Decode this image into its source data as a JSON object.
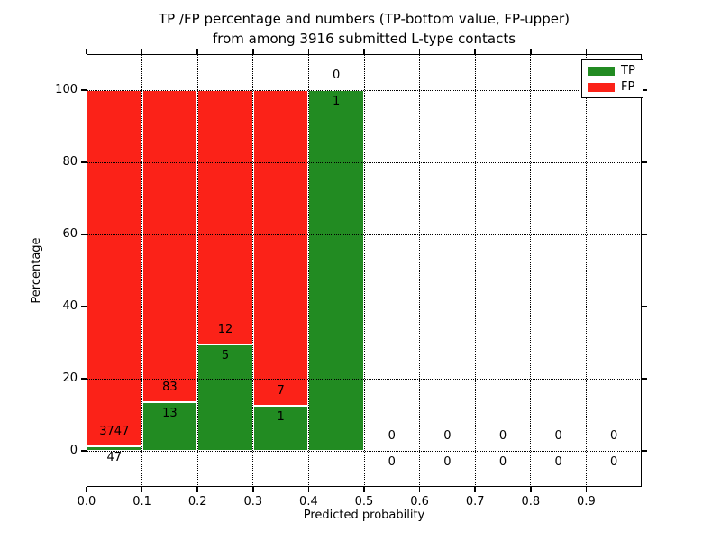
{
  "title": {
    "line1": "TP /FP percentage and numbers (TP-bottom value, FP-upper)",
    "line2": "from among 3916 submitted L-type contacts"
  },
  "legend": {
    "items": [
      {
        "label": "TP",
        "color": "#228b22"
      },
      {
        "label": "FP",
        "color": "#fb2218"
      }
    ],
    "position": "upper right"
  },
  "chart_data": {
    "type": "bar",
    "stacked": true,
    "title": "TP /FP percentage and numbers (TP-bottom value, FP-upper) from among 3916 submitted L-type contacts",
    "xlabel": "Predicted probability",
    "ylabel": "Percentage",
    "xlim": [
      0,
      1
    ],
    "ylim": [
      -10,
      110
    ],
    "grid": "dotted",
    "legend_position": "upper right",
    "total_contacts": 3916,
    "bin_edges": [
      0.0,
      0.1,
      0.2,
      0.3,
      0.4,
      0.5,
      0.6,
      0.7,
      0.8,
      0.9,
      1.0
    ],
    "x_tick_labels": [
      "0.0",
      "0.1",
      "0.2",
      "0.3",
      "0.4",
      "0.5",
      "0.6",
      "0.7",
      "0.8",
      "0.9"
    ],
    "y_tick_labels": [
      "0",
      "20",
      "40",
      "60",
      "80",
      "100"
    ],
    "series": [
      {
        "name": "TP",
        "color": "#228b22",
        "counts": [
          47,
          13,
          5,
          1,
          1,
          0,
          0,
          0,
          0,
          0
        ]
      },
      {
        "name": "FP",
        "color": "#fb2218",
        "counts": [
          3747,
          83,
          12,
          7,
          0,
          0,
          0,
          0,
          0,
          0
        ]
      }
    ],
    "bar_style": {
      "edge_color": "#ffffff",
      "percent_stacked_to": 100
    },
    "label_rule": "TP count below green/red boundary, FP count above it"
  }
}
